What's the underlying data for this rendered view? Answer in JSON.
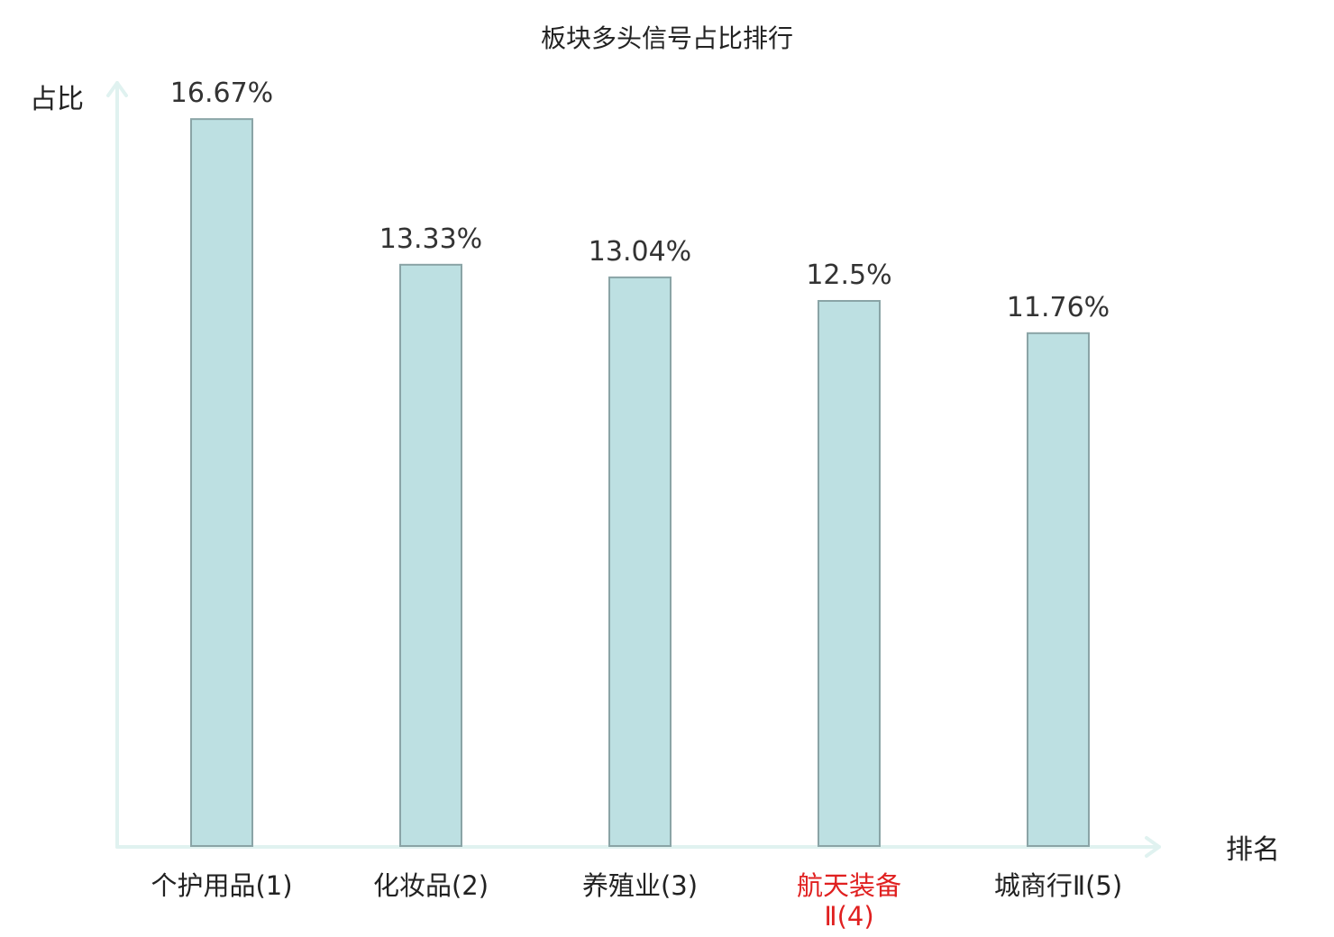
{
  "chart_data": {
    "type": "bar",
    "title": "板块多头信号占比排行",
    "ylabel": "占比",
    "xlabel": "排名",
    "ylim": [
      0,
      17.5
    ],
    "grid": false,
    "categories": [
      "个护用品(1)",
      "化妆品(2)",
      "养殖业(3)",
      "航天装备Ⅱ(4)",
      "城商行Ⅱ(5)"
    ],
    "category_lines": [
      [
        "个护用品(1)"
      ],
      [
        "化妆品(2)"
      ],
      [
        "养殖业(3)"
      ],
      [
        "航天装备",
        "Ⅱ(4)"
      ],
      [
        "城商行Ⅱ(5)"
      ]
    ],
    "values": [
      16.67,
      13.33,
      13.04,
      12.5,
      11.76
    ],
    "value_labels": [
      "16.67%",
      "13.33%",
      "13.04%",
      "12.5%",
      "11.76%"
    ],
    "highlight_index": 3,
    "colors": {
      "bar_fill": "#bde0e2",
      "bar_stroke": "#8aa4a6",
      "axis": "#e0f2f0",
      "highlight_label": "#e02020",
      "text": "#222222"
    }
  }
}
